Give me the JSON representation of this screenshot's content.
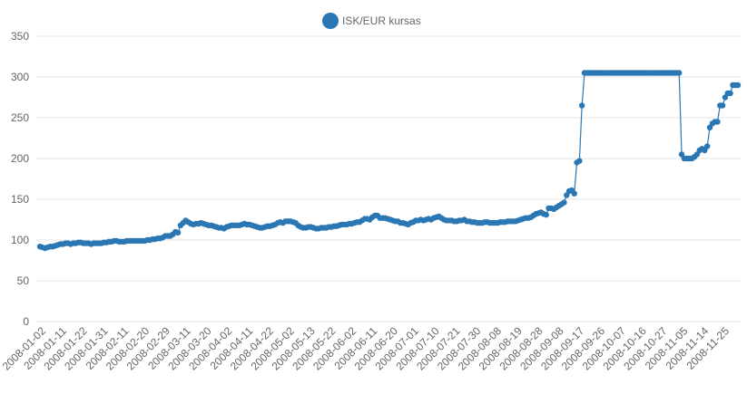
{
  "chart_data": {
    "type": "line",
    "title": "",
    "xlabel": "",
    "ylabel": "",
    "ylim": [
      0,
      350
    ],
    "yticks": [
      0,
      50,
      100,
      150,
      200,
      250,
      300,
      350
    ],
    "grid": true,
    "legend_position": "top-center",
    "x_tick_labels": [
      "2008-01-02",
      "2008-01-11",
      "2008-01-22",
      "2008-01-31",
      "2008-02-11",
      "2008-02-20",
      "2008-02-29",
      "2008-03-11",
      "2008-03-20",
      "2008-04-02",
      "2008-04-11",
      "2008-04-22",
      "2008-05-02",
      "2008-05-13",
      "2008-05-22",
      "2008-06-02",
      "2008-06-11",
      "2008-06-20",
      "2008-07-01",
      "2008-07-10",
      "2008-07-21",
      "2008-07-30",
      "2008-08-08",
      "2008-08-19",
      "2008-08-28",
      "2008-09-08",
      "2008-09-17",
      "2008-09-26",
      "2008-10-07",
      "2008-10-16",
      "2008-10-27",
      "2008-11-05",
      "2008-11-14",
      "2008-11-25"
    ],
    "series": [
      {
        "name": "ISK/EUR kursas",
        "color": "#2a77b4",
        "values": [
          92,
          91,
          90,
          91,
          92,
          92,
          93,
          94,
          95,
          95,
          96,
          96,
          95,
          96,
          96,
          97,
          97,
          96,
          96,
          96,
          95,
          96,
          96,
          96,
          96,
          97,
          97,
          98,
          98,
          99,
          99,
          98,
          98,
          98,
          99,
          99,
          99,
          99,
          99,
          99,
          99,
          99,
          100,
          100,
          101,
          101,
          102,
          102,
          103,
          105,
          105,
          105,
          107,
          110,
          109,
          118,
          121,
          124,
          122,
          120,
          119,
          120,
          120,
          121,
          120,
          119,
          118,
          118,
          117,
          116,
          115,
          115,
          114,
          116,
          117,
          118,
          118,
          118,
          118,
          119,
          120,
          119,
          119,
          118,
          117,
          116,
          115,
          115,
          116,
          117,
          117,
          118,
          119,
          121,
          122,
          121,
          123,
          123,
          123,
          122,
          121,
          118,
          116,
          115,
          115,
          116,
          116,
          115,
          114,
          114,
          115,
          115,
          115,
          116,
          116,
          117,
          117,
          118,
          119,
          119,
          119,
          120,
          120,
          121,
          122,
          122,
          124,
          126,
          126,
          125,
          128,
          130,
          130,
          127,
          127,
          127,
          126,
          125,
          124,
          123,
          123,
          121,
          121,
          120,
          119,
          121,
          122,
          124,
          124,
          125,
          124,
          125,
          126,
          125,
          127,
          128,
          129,
          127,
          125,
          124,
          124,
          124,
          123,
          123,
          124,
          124,
          125,
          123,
          123,
          122,
          122,
          121,
          121,
          121,
          122,
          122,
          121,
          121,
          121,
          121,
          122,
          122,
          122,
          123,
          123,
          123,
          123,
          124,
          125,
          126,
          127,
          127,
          128,
          130,
          132,
          133,
          134,
          132,
          131,
          139,
          139,
          138,
          140,
          142,
          144,
          146,
          155,
          160,
          161,
          157,
          195,
          197,
          265,
          305,
          305,
          305,
          305,
          305,
          305,
          305,
          305,
          305,
          305,
          305,
          305,
          305,
          305,
          305,
          305,
          305,
          305,
          305,
          305,
          305,
          305,
          305,
          305,
          305,
          305,
          305,
          305,
          305,
          305,
          305,
          305,
          305,
          305,
          305,
          305,
          305,
          305,
          205,
          200,
          200,
          200,
          200,
          202,
          205,
          210,
          212,
          210,
          215,
          238,
          243,
          245,
          245,
          265,
          265,
          275,
          280,
          280,
          290,
          290,
          290
        ]
      }
    ]
  }
}
